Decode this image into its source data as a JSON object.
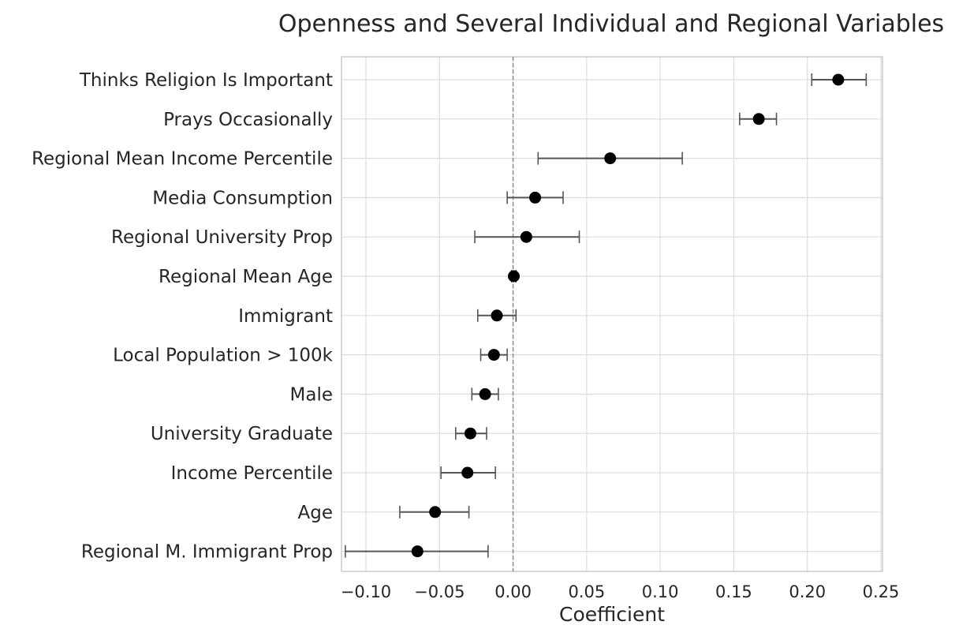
{
  "chart_data": {
    "type": "scatter",
    "title": "Openness and Several Individual and Regional Variables",
    "xlabel": "Coefficient",
    "ylabel": "",
    "xlim": [
      -0.13,
      0.255
    ],
    "xticks": [
      -0.1,
      -0.05,
      0.0,
      0.05,
      0.1,
      0.15,
      0.2,
      0.25
    ],
    "xtick_labels": [
      "−0.10",
      "−0.05",
      "0.00",
      "0.05",
      "0.10",
      "0.15",
      "0.20",
      "0.25"
    ],
    "grid": true,
    "reference_line_x": 0.0,
    "points": [
      {
        "label": "Thinks Religion Is Important",
        "value": 0.221,
        "ci_low": 0.203,
        "ci_high": 0.24
      },
      {
        "label": "Prays Occasionally",
        "value": 0.167,
        "ci_low": 0.154,
        "ci_high": 0.179
      },
      {
        "label": "Regional Mean Income Percentile",
        "value": 0.066,
        "ci_low": 0.017,
        "ci_high": 0.115
      },
      {
        "label": "Media Consumption",
        "value": 0.015,
        "ci_low": -0.004,
        "ci_high": 0.034
      },
      {
        "label": "Regional University Prop",
        "value": 0.009,
        "ci_low": -0.026,
        "ci_high": 0.045
      },
      {
        "label": "Regional Mean Age",
        "value": 0.0005,
        "ci_low": -0.001,
        "ci_high": 0.002
      },
      {
        "label": "Immigrant",
        "value": -0.011,
        "ci_low": -0.024,
        "ci_high": 0.002
      },
      {
        "label": "Local Population > 100k",
        "value": -0.013,
        "ci_low": -0.022,
        "ci_high": -0.004
      },
      {
        "label": "Male",
        "value": -0.019,
        "ci_low": -0.028,
        "ci_high": -0.01
      },
      {
        "label": "University Graduate",
        "value": -0.029,
        "ci_low": -0.039,
        "ci_high": -0.018
      },
      {
        "label": "Income Percentile",
        "value": -0.031,
        "ci_low": -0.049,
        "ci_high": -0.012
      },
      {
        "label": "Age",
        "value": -0.053,
        "ci_low": -0.077,
        "ci_high": -0.03
      },
      {
        "label": "Regional M. Immigrant Prop",
        "value": -0.065,
        "ci_low": -0.114,
        "ci_high": -0.017
      }
    ],
    "colors": {
      "point": "#000000",
      "errorbar": "#555555",
      "grid": "#dddddd",
      "reference_line": "#888888",
      "axis_frame": "#cccccc",
      "text": "#262626"
    }
  }
}
